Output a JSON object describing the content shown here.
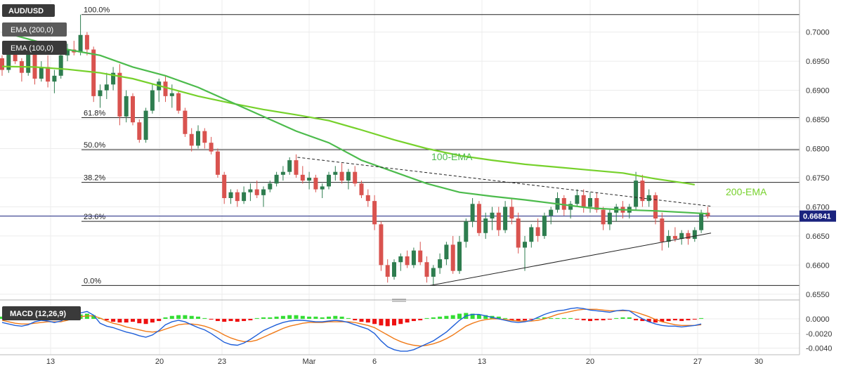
{
  "chart_data": [
    {
      "type": "candlestick",
      "symbol": "AUD/USD",
      "x_ticks": [
        "13",
        "20",
        "23",
        "Mar",
        "6",
        "13",
        "20",
        "27",
        "30"
      ],
      "y_ticks": [
        "0.7000",
        "0.6950",
        "0.6900",
        "0.6850",
        "0.6800",
        "0.6750",
        "0.6700",
        "0.6650",
        "0.6600",
        "0.6550"
      ],
      "ylim": [
        0.6545,
        0.7055
      ],
      "current_price": "0.66841",
      "current_price_value": 0.66841,
      "legend": [
        {
          "label": "EMA (200,0)"
        },
        {
          "label": "EMA (100,0)"
        }
      ],
      "fibonacci_levels": [
        {
          "label": "100.0%",
          "value": 0.703
        },
        {
          "label": "61.8%",
          "value": 0.6853
        },
        {
          "label": "50.0%",
          "value": 0.6798
        },
        {
          "label": "38.2%",
          "value": 0.6742
        },
        {
          "label": "23.6%",
          "value": 0.6675
        },
        {
          "label": "0.0%",
          "value": 0.6565
        }
      ],
      "annotations": [
        "100-EMA",
        "200-EMA"
      ],
      "ema_100": [
        [
          0,
          0.7
        ],
        [
          5,
          0.6985
        ],
        [
          10,
          0.697
        ],
        [
          15,
          0.696
        ],
        [
          20,
          0.694
        ],
        [
          25,
          0.6925
        ],
        [
          30,
          0.6905
        ],
        [
          35,
          0.688
        ],
        [
          40,
          0.6855
        ],
        [
          45,
          0.683
        ],
        [
          50,
          0.681
        ],
        [
          55,
          0.678
        ],
        [
          60,
          0.676
        ],
        [
          65,
          0.674
        ],
        [
          70,
          0.6725
        ],
        [
          75,
          0.6718
        ],
        [
          80,
          0.6712
        ],
        [
          85,
          0.6705
        ],
        [
          90,
          0.6698
        ],
        [
          95,
          0.6695
        ],
        [
          100,
          0.6693
        ],
        [
          105,
          0.669
        ],
        [
          108,
          0.6688
        ]
      ],
      "ema_200": [
        [
          0,
          0.6941
        ],
        [
          5,
          0.694
        ],
        [
          10,
          0.6936
        ],
        [
          15,
          0.693
        ],
        [
          20,
          0.692
        ],
        [
          25,
          0.6905
        ],
        [
          30,
          0.689
        ],
        [
          35,
          0.6878
        ],
        [
          40,
          0.6867
        ],
        [
          45,
          0.6858
        ],
        [
          50,
          0.6848
        ],
        [
          55,
          0.6832
        ],
        [
          60,
          0.6815
        ],
        [
          65,
          0.68
        ],
        [
          70,
          0.6788
        ],
        [
          75,
          0.678
        ],
        [
          80,
          0.6773
        ],
        [
          85,
          0.6768
        ],
        [
          90,
          0.6763
        ],
        [
          95,
          0.6758
        ],
        [
          100,
          0.6748
        ],
        [
          105,
          0.674
        ],
        [
          106,
          0.6738
        ]
      ],
      "trendlines": [
        {
          "style": "dashed",
          "from": [
            45.2,
            0.6785
          ],
          "to": [
            108.5,
            0.6701
          ]
        },
        {
          "style": "solid",
          "from": [
            65.5,
            0.6565
          ],
          "to": [
            108.5,
            0.6655
          ]
        }
      ],
      "candles": [
        [
          0.6955,
          0.696,
          0.6925,
          0.6935
        ],
        [
          0.6935,
          0.6985,
          0.693,
          0.6975
        ],
        [
          0.6975,
          0.698,
          0.6945,
          0.695
        ],
        [
          0.695,
          0.6955,
          0.6915,
          0.693
        ],
        [
          0.693,
          0.6975,
          0.6925,
          0.6965
        ],
        [
          0.6965,
          0.697,
          0.691,
          0.692
        ],
        [
          0.692,
          0.695,
          0.6915,
          0.694
        ],
        [
          0.694,
          0.696,
          0.6905,
          0.6915
        ],
        [
          0.6915,
          0.6935,
          0.6895,
          0.6925
        ],
        [
          0.6925,
          0.6965,
          0.692,
          0.696
        ],
        [
          0.696,
          0.698,
          0.695,
          0.697
        ],
        [
          0.697,
          0.6985,
          0.696,
          0.6965
        ],
        [
          0.6965,
          0.703,
          0.696,
          0.6995
        ],
        [
          0.6995,
          0.7,
          0.696,
          0.697
        ],
        [
          0.697,
          0.6975,
          0.688,
          0.689
        ],
        [
          0.689,
          0.691,
          0.687,
          0.69
        ],
        [
          0.69,
          0.693,
          0.6885,
          0.691
        ],
        [
          0.691,
          0.694,
          0.69,
          0.693
        ],
        [
          0.693,
          0.6945,
          0.684,
          0.6855
        ],
        [
          0.6855,
          0.69,
          0.6845,
          0.689
        ],
        [
          0.689,
          0.6895,
          0.684,
          0.6845
        ],
        [
          0.6845,
          0.685,
          0.681,
          0.6815
        ],
        [
          0.6815,
          0.687,
          0.681,
          0.6865
        ],
        [
          0.6865,
          0.691,
          0.686,
          0.69
        ],
        [
          0.69,
          0.692,
          0.688,
          0.6915
        ],
        [
          0.6915,
          0.6925,
          0.688,
          0.689
        ],
        [
          0.689,
          0.691,
          0.687,
          0.6895
        ],
        [
          0.6895,
          0.69,
          0.686,
          0.6865
        ],
        [
          0.6865,
          0.687,
          0.682,
          0.6825
        ],
        [
          0.6825,
          0.6835,
          0.6795,
          0.6805
        ],
        [
          0.6805,
          0.684,
          0.68,
          0.683
        ],
        [
          0.683,
          0.6835,
          0.68,
          0.681
        ],
        [
          0.681,
          0.682,
          0.679,
          0.6795
        ],
        [
          0.6795,
          0.68,
          0.675,
          0.6755
        ],
        [
          0.6755,
          0.676,
          0.6705,
          0.6715
        ],
        [
          0.6715,
          0.673,
          0.6705,
          0.6725
        ],
        [
          0.6725,
          0.673,
          0.67,
          0.671
        ],
        [
          0.671,
          0.6735,
          0.6705,
          0.6725
        ],
        [
          0.6725,
          0.674,
          0.671,
          0.673
        ],
        [
          0.673,
          0.6745,
          0.6715,
          0.672
        ],
        [
          0.672,
          0.6735,
          0.67,
          0.673
        ],
        [
          0.673,
          0.6745,
          0.6725,
          0.674
        ],
        [
          0.674,
          0.676,
          0.6735,
          0.6755
        ],
        [
          0.6755,
          0.677,
          0.6745,
          0.676
        ],
        [
          0.676,
          0.6785,
          0.6755,
          0.678
        ],
        [
          0.678,
          0.679,
          0.675,
          0.6755
        ],
        [
          0.6755,
          0.677,
          0.674,
          0.6745
        ],
        [
          0.6745,
          0.676,
          0.673,
          0.675
        ],
        [
          0.675,
          0.6755,
          0.6725,
          0.673
        ],
        [
          0.673,
          0.674,
          0.6715,
          0.6735
        ],
        [
          0.6735,
          0.676,
          0.673,
          0.6755
        ],
        [
          0.6755,
          0.677,
          0.6745,
          0.676
        ],
        [
          0.676,
          0.6775,
          0.674,
          0.6745
        ],
        [
          0.6745,
          0.6765,
          0.673,
          0.676
        ],
        [
          0.676,
          0.677,
          0.6735,
          0.674
        ],
        [
          0.674,
          0.6745,
          0.6715,
          0.672
        ],
        [
          0.672,
          0.673,
          0.67,
          0.671
        ],
        [
          0.671,
          0.672,
          0.666,
          0.667
        ],
        [
          0.667,
          0.6675,
          0.659,
          0.66
        ],
        [
          0.66,
          0.661,
          0.657,
          0.658
        ],
        [
          0.658,
          0.661,
          0.6575,
          0.6605
        ],
        [
          0.6605,
          0.662,
          0.659,
          0.6615
        ],
        [
          0.6615,
          0.6625,
          0.6595,
          0.66
        ],
        [
          0.66,
          0.663,
          0.6595,
          0.6625
        ],
        [
          0.6625,
          0.664,
          0.66,
          0.6605
        ],
        [
          0.6605,
          0.6615,
          0.657,
          0.658
        ],
        [
          0.658,
          0.66,
          0.6565,
          0.6595
        ],
        [
          0.6595,
          0.662,
          0.6585,
          0.661
        ],
        [
          0.661,
          0.664,
          0.66,
          0.6635
        ],
        [
          0.6635,
          0.665,
          0.6585,
          0.659
        ],
        [
          0.659,
          0.665,
          0.6585,
          0.664
        ],
        [
          0.664,
          0.668,
          0.663,
          0.6675
        ],
        [
          0.6675,
          0.6715,
          0.6665,
          0.6705
        ],
        [
          0.6705,
          0.671,
          0.665,
          0.6655
        ],
        [
          0.6655,
          0.669,
          0.6645,
          0.668
        ],
        [
          0.668,
          0.67,
          0.666,
          0.669
        ],
        [
          0.669,
          0.67,
          0.665,
          0.666
        ],
        [
          0.666,
          0.671,
          0.6655,
          0.67
        ],
        [
          0.67,
          0.6715,
          0.667,
          0.668
        ],
        [
          0.668,
          0.669,
          0.662,
          0.663
        ],
        [
          0.663,
          0.665,
          0.659,
          0.664
        ],
        [
          0.664,
          0.667,
          0.663,
          0.6665
        ],
        [
          0.6665,
          0.668,
          0.664,
          0.665
        ],
        [
          0.665,
          0.669,
          0.6645,
          0.6685
        ],
        [
          0.6685,
          0.67,
          0.667,
          0.6695
        ],
        [
          0.6695,
          0.6725,
          0.669,
          0.6715
        ],
        [
          0.6715,
          0.672,
          0.6685,
          0.6695
        ],
        [
          0.6695,
          0.671,
          0.668,
          0.6705
        ],
        [
          0.6705,
          0.673,
          0.67,
          0.672
        ],
        [
          0.672,
          0.673,
          0.669,
          0.67
        ],
        [
          0.67,
          0.6725,
          0.669,
          0.6715
        ],
        [
          0.6715,
          0.6725,
          0.669,
          0.6695
        ],
        [
          0.6695,
          0.67,
          0.666,
          0.667
        ],
        [
          0.667,
          0.6695,
          0.666,
          0.669
        ],
        [
          0.669,
          0.6705,
          0.6675,
          0.67
        ],
        [
          0.67,
          0.671,
          0.668,
          0.669
        ],
        [
          0.669,
          0.6705,
          0.668,
          0.67
        ],
        [
          0.67,
          0.676,
          0.6695,
          0.6745
        ],
        [
          0.6745,
          0.6755,
          0.67,
          0.671
        ],
        [
          0.671,
          0.673,
          0.67,
          0.672
        ],
        [
          0.672,
          0.6725,
          0.667,
          0.668
        ],
        [
          0.668,
          0.669,
          0.6625,
          0.664
        ],
        [
          0.664,
          0.666,
          0.663,
          0.665
        ],
        [
          0.665,
          0.6665,
          0.664,
          0.6645
        ],
        [
          0.6645,
          0.666,
          0.6635,
          0.6655
        ],
        [
          0.6655,
          0.666,
          0.6635,
          0.6645
        ],
        [
          0.6645,
          0.6665,
          0.664,
          0.666
        ],
        [
          0.666,
          0.6695,
          0.6655,
          0.669
        ],
        [
          0.669,
          0.67,
          0.668,
          0.6684
        ]
      ]
    },
    {
      "type": "macd",
      "title": "MACD (12,26,9)",
      "y_ticks": [
        "0.0000",
        "-0.0020",
        "-0.0040"
      ],
      "ylim": [
        -0.0047,
        0.002
      ],
      "histogram": [
        0.0003,
        0.0004,
        0.0005,
        0.0005,
        0.0004,
        0.0003,
        0.0002,
        0.0001,
        0.0001,
        0.0002,
        0.0003,
        0.0004,
        0.0006,
        0.0007,
        0.0005,
        0.0001,
        -0.0002,
        -0.0004,
        -0.0005,
        -0.0005,
        -0.0004,
        -0.0006,
        -0.0007,
        -0.0005,
        -0.0003,
        0.0002,
        0.0004,
        0.0005,
        0.0005,
        0.0004,
        0.0003,
        0.0001,
        -0.0001,
        -0.0003,
        -0.0004,
        -0.0003,
        -0.0004,
        -0.0003,
        -0.0002,
        0.0001,
        0.0002,
        0.0002,
        0.0003,
        0.0004,
        0.0005,
        0.0005,
        0.0004,
        0.0003,
        0.0003,
        0.0002,
        0.0003,
        0.0004,
        0.0003,
        0.0001,
        -0.0002,
        -0.0004,
        -0.0005,
        -0.0007,
        -0.0009,
        -0.001,
        -0.0009,
        -0.0007,
        -0.0005,
        -0.0003,
        -0.0002,
        0.0001,
        0.0002,
        0.0003,
        0.0004,
        0.0005,
        0.0007,
        0.0008,
        0.0007,
        0.0006,
        0.0005,
        0.0004,
        0.0003,
        0.0001,
        -0.0002,
        -0.0003,
        -0.0002,
        -0.0001,
        0.0001,
        0.0002,
        0.0001,
        0.0001,
        0.0001,
        0.0001,
        -0.0001,
        -0.0002,
        -0.0003,
        -0.0002,
        -0.0002,
        -0.0001,
        0.0001,
        0.0002,
        0.0002,
        -0.0002,
        -0.0003,
        -0.0004,
        -0.0005,
        -0.0004,
        -0.0003,
        -0.0002,
        -0.0003,
        -0.0002,
        -0.0001,
        0.0001
      ],
      "macd_line": [
        -0.0005,
        -0.0007,
        -0.0009,
        -0.001,
        -0.0008,
        -0.0004,
        -0.0002,
        -0.0003,
        -0.0005,
        -0.0003,
        0.0002,
        0.0006,
        0.0008,
        0.001,
        0.0005,
        -0.0006,
        -0.001,
        -0.0012,
        -0.0015,
        -0.0018,
        -0.002,
        -0.0023,
        -0.0025,
        -0.0022,
        -0.0016,
        -0.0008,
        -0.0004,
        -0.0002,
        -0.0004,
        -0.0008,
        -0.0012,
        -0.0015,
        -0.002,
        -0.0026,
        -0.0032,
        -0.0035,
        -0.0036,
        -0.0033,
        -0.0028,
        -0.0022,
        -0.0016,
        -0.0012,
        -0.0008,
        -0.0005,
        -0.0003,
        -0.0002,
        -0.0002,
        -0.0003,
        -0.0004,
        -0.0004,
        -0.0003,
        -0.0002,
        -0.0003,
        -0.0005,
        -0.0008,
        -0.0011,
        -0.0014,
        -0.002,
        -0.003,
        -0.0038,
        -0.0042,
        -0.0044,
        -0.0044,
        -0.0042,
        -0.0038,
        -0.0034,
        -0.003,
        -0.0024,
        -0.0018,
        -0.001,
        -0.0002,
        0.0004,
        0.0006,
        0.0006,
        0.0004,
        0.0002,
        0.0,
        -0.0002,
        -0.0004,
        -0.0005,
        -0.0004,
        -0.0002,
        0.0002,
        0.0006,
        0.0009,
        0.0011,
        0.0012,
        0.0014,
        0.0015,
        0.0014,
        0.0012,
        0.0011,
        0.001,
        0.0009,
        0.0011,
        0.0012,
        0.0011,
        0.0005,
        0.0,
        -0.0004,
        -0.0007,
        -0.0009,
        -0.001,
        -0.001,
        -0.0011,
        -0.001,
        -0.0009,
        -0.0007
      ],
      "signal_line": [
        -0.0002,
        -0.0004,
        -0.0006,
        -0.0007,
        -0.0007,
        -0.0006,
        -0.0005,
        -0.0004,
        -0.0004,
        -0.0004,
        -0.0002,
        0.0001,
        0.0003,
        0.0004,
        0.0004,
        0.0001,
        -0.0003,
        -0.0006,
        -0.0008,
        -0.0011,
        -0.0013,
        -0.0015,
        -0.0017,
        -0.0018,
        -0.0017,
        -0.0014,
        -0.0011,
        -0.0008,
        -0.0007,
        -0.0007,
        -0.0008,
        -0.001,
        -0.0013,
        -0.0017,
        -0.0022,
        -0.0026,
        -0.0029,
        -0.0031,
        -0.0031,
        -0.0029,
        -0.0025,
        -0.0021,
        -0.0017,
        -0.0013,
        -0.001,
        -0.0008,
        -0.0006,
        -0.0005,
        -0.0005,
        -0.0005,
        -0.0004,
        -0.0004,
        -0.0004,
        -0.0004,
        -0.0005,
        -0.0007,
        -0.0009,
        -0.0012,
        -0.0017,
        -0.0022,
        -0.0027,
        -0.0031,
        -0.0034,
        -0.0036,
        -0.0037,
        -0.0036,
        -0.0034,
        -0.0031,
        -0.0027,
        -0.0022,
        -0.0016,
        -0.001,
        -0.0006,
        -0.0003,
        -0.0001,
        0.0,
        0.0,
        -0.0001,
        -0.0002,
        -0.0003,
        -0.0003,
        -0.0003,
        -0.0002,
        0.0,
        0.0003,
        0.0006,
        0.0008,
        0.001,
        0.0012,
        0.0013,
        0.0013,
        0.0013,
        0.0012,
        0.0011,
        0.0011,
        0.0011,
        0.0011,
        0.0009,
        0.0006,
        0.0003,
        -0.0001,
        -0.0004,
        -0.0006,
        -0.0008,
        -0.0009,
        -0.0009,
        -0.0009,
        -0.0008
      ]
    }
  ],
  "colors": {
    "bull": "#2e7d4f",
    "bear": "#d9534f",
    "ema100": "#4cbb4c",
    "ema200": "#76d12b",
    "hist_pos": "#33dd33",
    "hist_neg": "#ee1111",
    "macd": "#1f5fd9",
    "signal": "#f07a18",
    "price_tag": "#1a237e"
  }
}
